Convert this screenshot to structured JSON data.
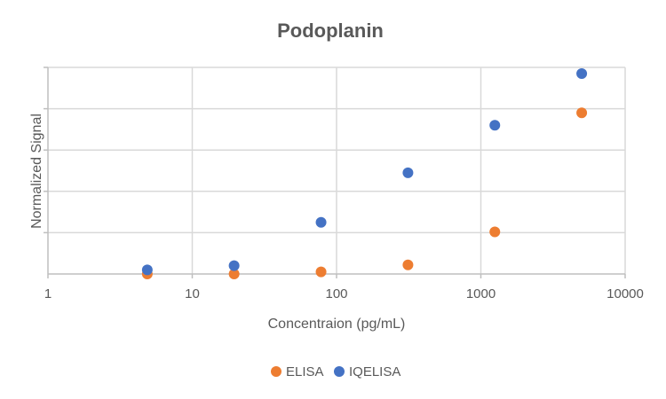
{
  "chart_data": {
    "type": "scatter",
    "title": "Podoplanin",
    "xlabel": "Concentraion (pg/mL)",
    "ylabel": "Normalized Signal",
    "xscale": "log",
    "xlim": [
      1,
      10000
    ],
    "ylim": [
      0,
      5
    ],
    "x_tick_labels": [
      "1",
      "10",
      "100",
      "1000",
      "10000"
    ],
    "x_tick_values": [
      1,
      10,
      100,
      1000,
      10000
    ],
    "y_gridlines": [
      0,
      1,
      2,
      3,
      4,
      5
    ],
    "grid": true,
    "legend_position": "bottom",
    "series": [
      {
        "name": "ELISA",
        "color": "#ed7d31",
        "x": [
          4.88,
          19.5,
          78.1,
          312.5,
          1250,
          5000
        ],
        "y": [
          0.0,
          0.0,
          0.05,
          0.22,
          1.02,
          3.9
        ]
      },
      {
        "name": "IQELISA",
        "color": "#4472c4",
        "x": [
          4.88,
          19.5,
          78.1,
          312.5,
          1250,
          5000
        ],
        "y": [
          0.1,
          0.2,
          1.25,
          2.45,
          3.6,
          4.85
        ]
      }
    ]
  }
}
